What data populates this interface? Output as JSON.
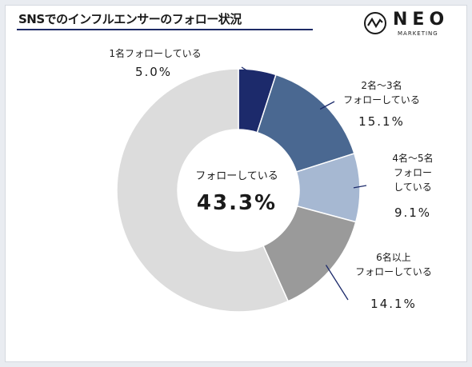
{
  "header": {
    "title": "SNSでのインフルエンサーのフォロー状況",
    "logo": {
      "name": "NEO",
      "sub": "MARKETING",
      "icon": "zigzag-circle-icon"
    }
  },
  "chart_data": {
    "type": "pie",
    "donut": true,
    "center": {
      "label": "フォローしている",
      "value": "43.3%"
    },
    "slices": [
      {
        "label_lines": [
          "1名フォローしている"
        ],
        "value": 5.0,
        "value_label": "5.0%",
        "color": "#1c2a6b"
      },
      {
        "label_lines": [
          "2名～3名",
          "フォローしている"
        ],
        "value": 15.1,
        "value_label": "15.1%",
        "color": "#4a6891"
      },
      {
        "label_lines": [
          "4名～5名",
          "フォロー",
          "している"
        ],
        "value": 9.1,
        "value_label": "9.1%",
        "color": "#a6b8d2"
      },
      {
        "label_lines": [
          "6名以上",
          "フォローしている"
        ],
        "value": 14.1,
        "value_label": "14.1%",
        "color": "#9a9a9a"
      },
      {
        "label_lines": [],
        "value": 56.7,
        "value_label": "",
        "color": "#dcdcdc"
      }
    ]
  }
}
